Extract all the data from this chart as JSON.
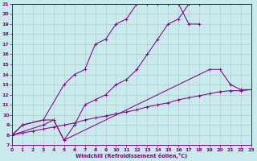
{
  "xlabel": "Windchill (Refroidissement éolien,°C)",
  "bg_color": "#c8eaea",
  "grid_color": "#aacece",
  "line_color": "#880088",
  "xlim": [
    0,
    23
  ],
  "ylim": [
    7,
    21
  ],
  "xticks": [
    0,
    1,
    2,
    3,
    4,
    5,
    6,
    7,
    8,
    9,
    10,
    11,
    12,
    13,
    14,
    15,
    16,
    17,
    18,
    19,
    20,
    21,
    22,
    23
  ],
  "yticks": [
    7,
    8,
    9,
    10,
    11,
    12,
    13,
    14,
    15,
    16,
    17,
    18,
    19,
    20,
    21
  ],
  "curve1_x": [
    0,
    1,
    3,
    5,
    6,
    7,
    8,
    9,
    10,
    11,
    12,
    13,
    14,
    15,
    16,
    17,
    18
  ],
  "curve1_y": [
    8,
    9,
    9.5,
    13,
    14,
    14.5,
    17,
    17.5,
    19,
    19.5,
    21,
    21,
    21,
    21,
    21,
    19,
    19
  ],
  "curve2_x": [
    0,
    1,
    3,
    4,
    5,
    6,
    7,
    8,
    9,
    10,
    11,
    12,
    13,
    14,
    15,
    16,
    17,
    18
  ],
  "curve2_y": [
    8,
    9,
    9.5,
    9.5,
    7.5,
    9,
    11,
    11.5,
    12,
    13,
    13.5,
    14.5,
    16,
    17.5,
    19,
    19.5,
    21,
    21
  ],
  "curve3_x": [
    0,
    3,
    4,
    5,
    19,
    20,
    21,
    22,
    23
  ],
  "curve3_y": [
    8,
    9,
    9.5,
    7.5,
    14.5,
    14.5,
    13,
    12.5,
    12.5
  ],
  "curve4_x": [
    0,
    1,
    2,
    3,
    4,
    5,
    6,
    7,
    8,
    9,
    10,
    11,
    12,
    13,
    14,
    15,
    16,
    17,
    18,
    19,
    20,
    21,
    22,
    23
  ],
  "curve4_y": [
    8,
    8.2,
    8.4,
    8.6,
    8.8,
    9.0,
    9.2,
    9.5,
    9.7,
    9.9,
    10.1,
    10.3,
    10.5,
    10.8,
    11.0,
    11.2,
    11.5,
    11.7,
    11.9,
    12.1,
    12.3,
    12.4,
    12.4,
    12.5
  ]
}
